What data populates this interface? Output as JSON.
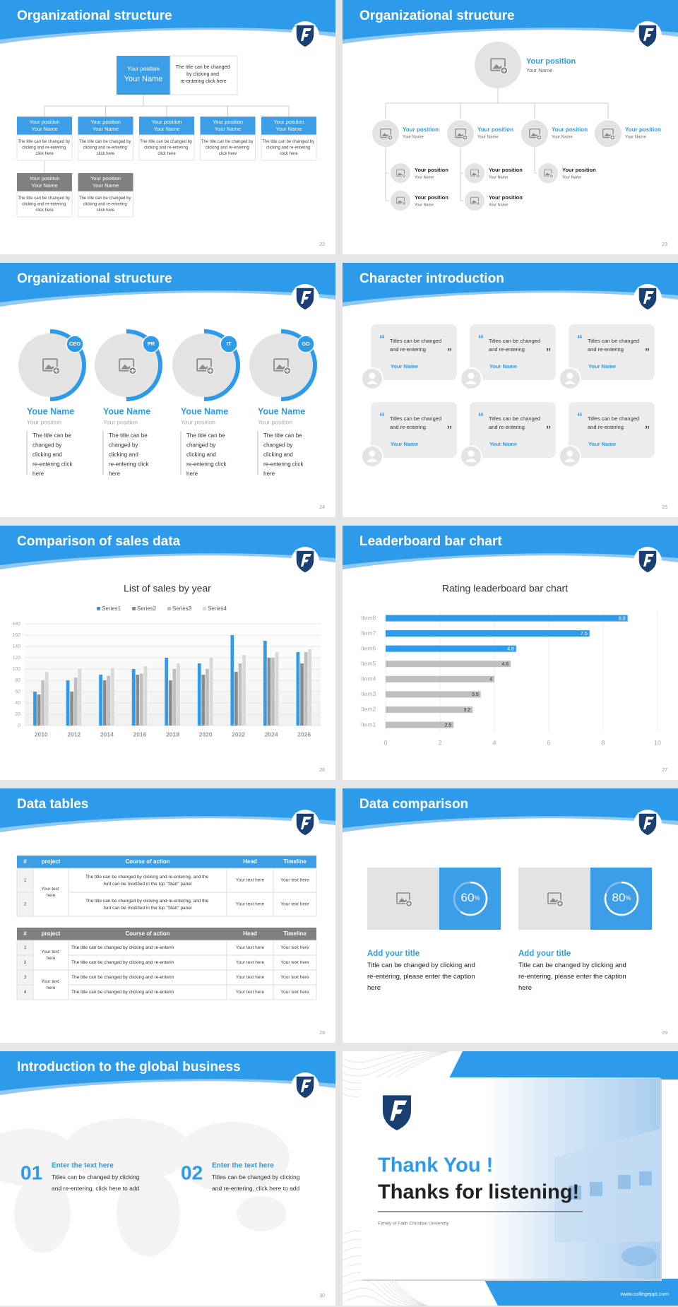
{
  "slides": [
    {
      "title": "Organizational structure",
      "page": "22",
      "head": {
        "position": "Your position",
        "name": "Your Name",
        "text": "The title can be changed by clicking and re-entering click here"
      },
      "members": [
        {
          "position": "Your position",
          "name": "Your Name",
          "text": "The title can be changed by clicking and re-entering click here"
        },
        {
          "position": "Your position",
          "name": "Your Name",
          "text": "The title can be changed by clicking and re-entering click here"
        },
        {
          "position": "Your position",
          "name": "Your Name",
          "text": "The title can be changed by clicking and re-entering click here"
        },
        {
          "position": "Your position",
          "name": "Your Name",
          "text": "The title can be changed by clicking and re-entering click here"
        },
        {
          "position": "Your position",
          "name": "Your Name",
          "text": "The title can be changed by clicking and re-entering click here"
        },
        {
          "position": "Your position",
          "name": "Your Name",
          "text": "The title can be changed by clicking and re-entering click here"
        },
        {
          "position": "Your position",
          "name": "Your Name",
          "text": "The title can be changed by clicking and re-entering click here"
        }
      ]
    },
    {
      "title": "Organizational structure",
      "page": "23",
      "head": {
        "position": "Your position",
        "name": "Your Name"
      },
      "nodes": [
        {
          "position": "Your position",
          "name": "Your Name"
        },
        {
          "position": "Your position",
          "name": "Your Name"
        },
        {
          "position": "Your position",
          "name": "Your Name"
        },
        {
          "position": "Your position",
          "name": "Your Name"
        }
      ],
      "subnodes": [
        {
          "position": "Your position",
          "name": "Your Name"
        },
        {
          "position": "Your position",
          "name": "Your Name"
        },
        {
          "position": "Your position",
          "name": "Your Name"
        },
        {
          "position": "Your position",
          "name": "Your Name"
        },
        {
          "position": "Your position",
          "name": "Your Name"
        }
      ]
    },
    {
      "title": "Organizational structure",
      "page": "24",
      "people": [
        {
          "badge": "CEO",
          "name": "Youe Name",
          "position": "Your position",
          "text": "The title can be changed by clicking and re-entering click here"
        },
        {
          "badge": "PR",
          "name": "Youe Name",
          "position": "Your position",
          "text": "The title can be changed by clicking and re-entering click here"
        },
        {
          "badge": "IT",
          "name": "Youe Name",
          "position": "Your position",
          "text": "The title can be changed by clicking and re-entering click here"
        },
        {
          "badge": "GD",
          "name": "Youe Name",
          "position": "Your position",
          "text": "The title can be changed by clicking and re-entering click here"
        }
      ]
    },
    {
      "title": "Character introduction",
      "page": "25",
      "quote_open": "“",
      "quote_close": "”",
      "cards": [
        {
          "text": "Titles can be changed and re-entering",
          "name": "Your Name"
        },
        {
          "text": "Titles can be changed and re-entering",
          "name": "Your Name"
        },
        {
          "text": "Titles can be changed and re-entering",
          "name": "Your Name"
        },
        {
          "text": "Titles can be changed and re-entering",
          "name": "Your Name"
        },
        {
          "text": "Titles can be changed and re-entering",
          "name": "Your Name"
        },
        {
          "text": "Titles can be changed and re-entering",
          "name": "Your Name"
        }
      ]
    },
    {
      "title": "Comparison of sales data",
      "page": "26",
      "chart": {
        "type": "bar",
        "title": "List of sales by year",
        "categories": [
          "2010",
          "2012",
          "2014",
          "2016",
          "2018",
          "2020",
          "2022",
          "2024",
          "2026"
        ],
        "series": [
          {
            "name": "Series1",
            "color": "#2f9be9",
            "values": [
              60,
              80,
              90,
              100,
              120,
              110,
              160,
              150,
              130
            ]
          },
          {
            "name": "Series2",
            "color": "#8c8c8c",
            "values": [
              55,
              60,
              80,
              90,
              80,
              90,
              95,
              120,
              110
            ]
          },
          {
            "name": "Series3",
            "color": "#bfbfbf",
            "values": [
              80,
              85,
              88,
              92,
              100,
              100,
              110,
              120,
              130
            ]
          },
          {
            "name": "Series4",
            "color": "#d9d9d9",
            "values": [
              95,
              100,
              102,
              105,
              110,
              120,
              125,
              130,
              135
            ]
          }
        ],
        "ylim": [
          0,
          180
        ],
        "yticks": [
          0,
          20,
          40,
          60,
          80,
          100,
          120,
          140,
          160,
          180
        ],
        "grid": true,
        "legend": "top"
      }
    },
    {
      "title": "Leaderboard bar chart",
      "page": "27",
      "chart": {
        "type": "bar",
        "horizontal": true,
        "title": "Rating leaderboard bar chart",
        "categories": [
          "Item1",
          "Item2",
          "Item3",
          "Item4",
          "Item5",
          "Item6",
          "Item7",
          "Item8"
        ],
        "values": [
          2.5,
          3.2,
          3.5,
          4,
          4.6,
          4.8,
          7.5,
          8.9
        ],
        "colors": [
          "#bfbfbf",
          "#bfbfbf",
          "#bfbfbf",
          "#bfbfbf",
          "#bfbfbf",
          "#2f9be9",
          "#2f9be9",
          "#2f9be9"
        ],
        "xlim": [
          0,
          10
        ],
        "xticks": [
          0,
          2,
          4,
          6,
          8,
          10
        ],
        "grid": true
      }
    },
    {
      "title": "Data tables",
      "page": "28",
      "tables": [
        {
          "color": "#3d9ee8",
          "header": [
            "#",
            "project",
            "Course of action",
            "Head",
            "Timeline"
          ],
          "groups": [
            {
              "project": "Your text here",
              "rows": [
                [
                  "1",
                  "The title can be changed by clicking and re-entering, and the font can be modified in the top \"Start\" panel",
                  "Your text here",
                  "Your text here"
                ],
                [
                  "2",
                  "The title can be changed by clicking and re-entering, and the font can be modified in the top \"Start\" panel",
                  "Your text here",
                  "Your text here"
                ]
              ]
            }
          ]
        },
        {
          "color": "#808080",
          "header": [
            "#",
            "project",
            "Course of action",
            "Head",
            "Timeline"
          ],
          "groups": [
            {
              "project": "Your text here",
              "rows": [
                [
                  "1",
                  "The title can be changed by clicking and re-enterin",
                  "Your text here",
                  "Your text here"
                ],
                [
                  "2",
                  "The title can be changed by clicking and re-enterin",
                  "Your text here",
                  "Your text here"
                ]
              ]
            },
            {
              "project": "Your text here",
              "rows": [
                [
                  "3",
                  "The title can be changed by clicking and re-enterin",
                  "Your text here",
                  "Your text here"
                ],
                [
                  "4",
                  "The title can be changed by clicking and re-enterin",
                  "Your text here",
                  "Your text here"
                ]
              ]
            }
          ]
        }
      ]
    },
    {
      "title": "Data comparison",
      "page": "29",
      "cards": [
        {
          "value": 60,
          "unit": "%",
          "title": "Add your title",
          "text": "Title can be changed by clicking and re-entering, please enter the caption here"
        },
        {
          "value": 80,
          "unit": "%",
          "title": "Add your title",
          "text": "Title can be changed by clicking and re-entering, please enter the caption here"
        }
      ]
    },
    {
      "title": "Introduction to the global business",
      "page": "30",
      "items": [
        {
          "number": "01",
          "heading": "Enter the text here",
          "text": "Titles can be changed by clicking and re-entering, click here to add"
        },
        {
          "number": "02",
          "heading": "Enter the text here",
          "text": "Titles can be changed by clicking and re-entering, click here to add"
        }
      ]
    },
    {
      "title": "Thank You !",
      "subtitle": "Thanks for listening!",
      "caption": "Family of Faith Christian University",
      "url": "www.collegeppt.com"
    }
  ]
}
